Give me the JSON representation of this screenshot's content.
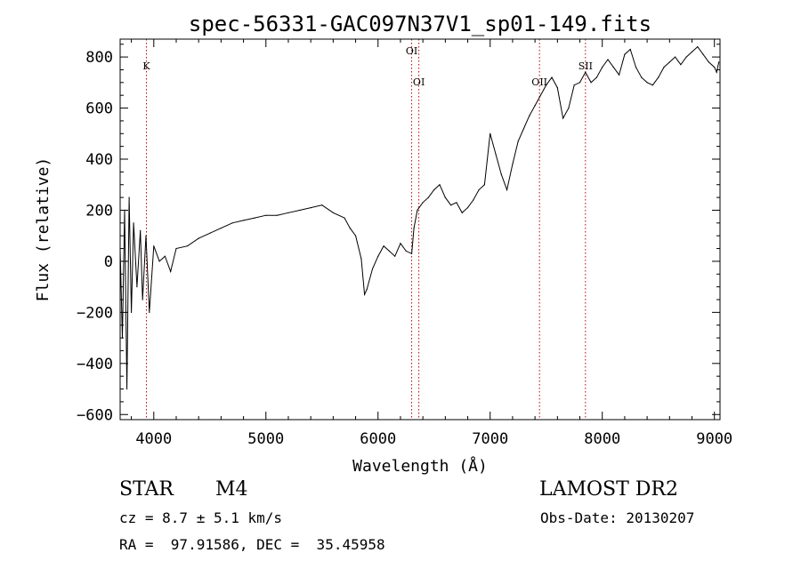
{
  "chart_data": {
    "type": "line",
    "title": "spec-56331-GAC097N37V1_sp01-149.fits",
    "xlabel": "Wavelength (Å)",
    "ylabel": "Flux (relative)",
    "xlim": [
      3700,
      9050
    ],
    "ylim": [
      -620,
      870
    ],
    "xticks": [
      4000,
      5000,
      6000,
      7000,
      8000,
      9000
    ],
    "yticks": [
      -600,
      -400,
      -200,
      0,
      200,
      400,
      600,
      800
    ],
    "xtick_labels": [
      "4000",
      "5000",
      "6000",
      "7000",
      "8000",
      "9000"
    ],
    "ytick_labels": [
      "−600",
      "−400",
      "−200",
      "0",
      "200",
      "400",
      "600",
      "800"
    ],
    "grid": false,
    "series": [
      {
        "x": [
          3700,
          3720,
          3740,
          3760,
          3780,
          3800,
          3820,
          3850,
          3880,
          3900,
          3930,
          3960,
          4000,
          4050,
          4100,
          4150,
          4200,
          4300,
          4400,
          4500,
          4600,
          4700,
          4800,
          4900,
          5000,
          5100,
          5200,
          5300,
          5400,
          5500,
          5600,
          5700,
          5750,
          5800,
          5850,
          5880,
          5900,
          5950,
          6000,
          6050,
          6100,
          6150,
          6200,
          6250,
          6300,
          6320,
          6350,
          6400,
          6450,
          6500,
          6550,
          6600,
          6650,
          6700,
          6750,
          6800,
          6850,
          6900,
          6950,
          7000,
          7050,
          7100,
          7150,
          7200,
          7250,
          7300,
          7350,
          7400,
          7450,
          7500,
          7550,
          7600,
          7650,
          7700,
          7750,
          7800,
          7850,
          7900,
          7950,
          8000,
          8050,
          8100,
          8150,
          8200,
          8250,
          8300,
          8350,
          8400,
          8450,
          8500,
          8550,
          8600,
          8650,
          8700,
          8750,
          8800,
          8850,
          8900,
          8950,
          9000,
          9020,
          9040
        ],
        "y": [
          50,
          -300,
          200,
          -500,
          250,
          -200,
          150,
          -100,
          120,
          -150,
          100,
          -200,
          60,
          0,
          20,
          -40,
          50,
          60,
          90,
          110,
          130,
          150,
          160,
          170,
          180,
          180,
          190,
          200,
          210,
          220,
          190,
          170,
          130,
          100,
          10,
          -130,
          -110,
          -30,
          20,
          60,
          40,
          20,
          70,
          40,
          30,
          130,
          200,
          230,
          250,
          280,
          300,
          250,
          220,
          230,
          190,
          210,
          240,
          280,
          300,
          500,
          420,
          340,
          280,
          380,
          470,
          520,
          570,
          610,
          650,
          690,
          720,
          680,
          560,
          600,
          690,
          700,
          740,
          700,
          720,
          760,
          790,
          760,
          730,
          810,
          830,
          760,
          720,
          700,
          690,
          720,
          760,
          780,
          800,
          770,
          800,
          820,
          840,
          810,
          780,
          760,
          740,
          780
        ]
      }
    ],
    "annotations": [
      {
        "label": "K",
        "x": 3934,
        "row": 2
      },
      {
        "label": "OI",
        "x": 6300,
        "row": 1
      },
      {
        "label": "OI",
        "x": 6364,
        "row": 3
      },
      {
        "label": "OII",
        "x": 7440,
        "row": 3
      },
      {
        "label": "SII",
        "x": 7850,
        "row": 2
      }
    ],
    "colors": {
      "series": "#000000",
      "annotation_line": "#c00000",
      "axis": "#000000"
    }
  },
  "footer": {
    "object_type": "STAR",
    "subclass": "M4",
    "cz_line": "cz = 8.7 ± 5.1 km/s",
    "radec_line": "RA =  97.91586, DEC =  35.45958",
    "survey": "LAMOST DR2",
    "obs_date_line": "Obs-Date: 20130207"
  }
}
